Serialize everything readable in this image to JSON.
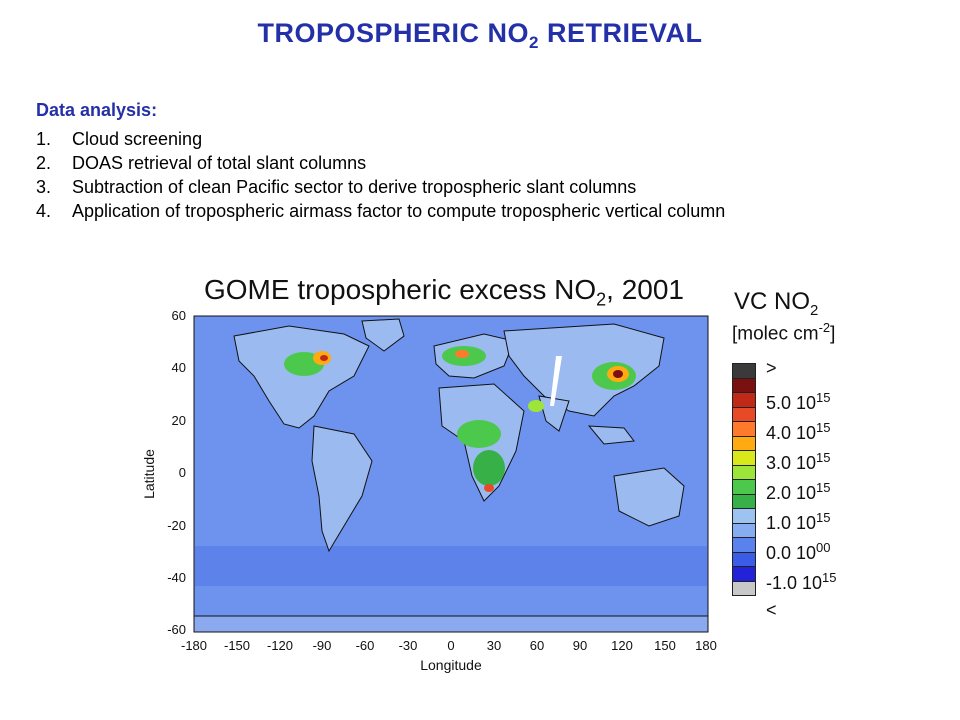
{
  "slide": {
    "title_main": "TROPOSPHERIC NO",
    "title_sub": "2",
    "title_tail": " RETRIEVAL"
  },
  "analysis": {
    "heading": "Data analysis:",
    "steps": [
      {
        "num": "1.",
        "text": "Cloud screening"
      },
      {
        "num": "2.",
        "text": "DOAS retrieval of total slant columns"
      },
      {
        "num": "3.",
        "text": "Subtraction of clean Pacific sector to derive tropospheric slant columns"
      },
      {
        "num": "4.",
        "text": "Application of tropospheric airmass factor to compute tropospheric vertical column"
      }
    ]
  },
  "map": {
    "title_main": "GOME tropospheric excess NO",
    "title_sub": "2",
    "title_tail": ", 2001",
    "xlabel": "Longitude",
    "ylabel": "Latitude",
    "x_ticks": [
      "-180",
      "-150",
      "-120",
      "-90",
      "-60",
      "-30",
      "0",
      "30",
      "60",
      "90",
      "120",
      "150",
      "180"
    ],
    "y_ticks": [
      "60",
      "40",
      "20",
      "0",
      "-20",
      "-40",
      "-60"
    ],
    "ocean_color": "#6e93ee",
    "land_color": "#9bbaf0"
  },
  "legend": {
    "title_main": "VC NO",
    "title_sub": "2",
    "units_main": "[molec cm",
    "units_sup": "-2",
    "units_tail": "]",
    "swatches": [
      "#3a3a3a",
      "#7a1010",
      "#c02818",
      "#e84a28",
      "#ff7a2a",
      "#ffaa10",
      "#d8e818",
      "#9ee53a",
      "#4cc84c",
      "#38b048",
      "#9dc3f2",
      "#86acf2",
      "#5a82ec",
      "#3a5ce6",
      "#2222d8",
      "#c8c8c8"
    ],
    "labels": [
      {
        "base": ">",
        "sup": ""
      },
      {
        "base": "5.0 10",
        "sup": "15"
      },
      {
        "base": "4.0 10",
        "sup": "15"
      },
      {
        "base": "3.0 10",
        "sup": "15"
      },
      {
        "base": "2.0 10",
        "sup": "15"
      },
      {
        "base": "1.0 10",
        "sup": "15"
      },
      {
        "base": "0.0 10",
        "sup": "00"
      },
      {
        "base": "-1.0 10",
        "sup": "15"
      },
      {
        "base": "<",
        "sup": ""
      }
    ]
  }
}
